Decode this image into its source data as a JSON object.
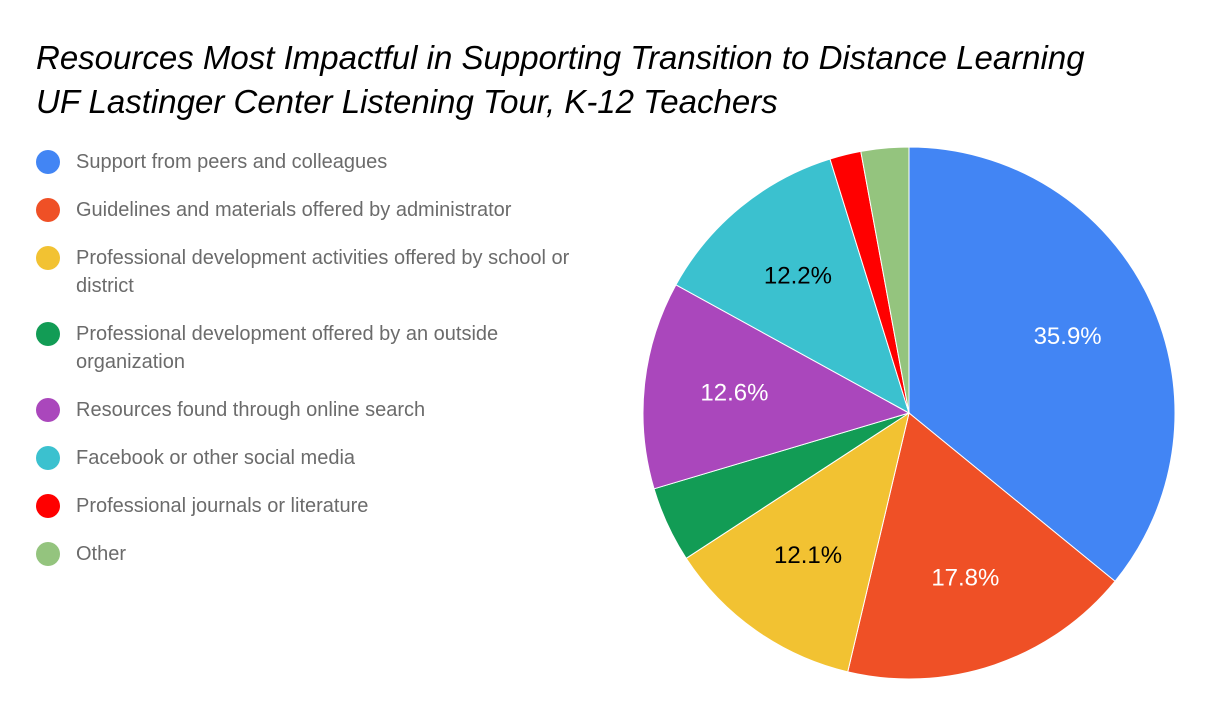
{
  "chart_data": {
    "type": "pie",
    "title_lines": [
      "Resources Most Impactful in Supporting Transition to Distance Learning",
      "UF Lastinger Center Listening Tour, K-12 Teachers"
    ],
    "legend_position": "left",
    "slices": [
      {
        "label": "Support from peers and colleagues",
        "value": 35.9,
        "color": "#4285F4",
        "data_label": "35.9%",
        "label_color": "#ffffff"
      },
      {
        "label": "Guidelines and materials offered by administrator",
        "value": 17.8,
        "color": "#EF5026",
        "data_label": "17.8%",
        "label_color": "#ffffff"
      },
      {
        "label": "Professional development activities offered by school or district",
        "value": 12.1,
        "color": "#F2C232",
        "data_label": "12.1%",
        "label_color": "#000000"
      },
      {
        "label": "Professional development offered by an outside organization",
        "value": 4.6,
        "color": "#129C55",
        "data_label": "",
        "label_color": "#ffffff"
      },
      {
        "label": "Resources found through online search",
        "value": 12.6,
        "color": "#AA47BC",
        "data_label": "12.6%",
        "label_color": "#ffffff"
      },
      {
        "label": "Facebook or other social media",
        "value": 12.2,
        "color": "#3BC1CF",
        "data_label": "12.2%",
        "label_color": "#000000"
      },
      {
        "label": "Professional journals or literature",
        "value": 1.9,
        "color": "#FF0000",
        "data_label": "",
        "label_color": "#ffffff"
      },
      {
        "label": "Other",
        "value": 2.9,
        "color": "#94C47E",
        "data_label": "",
        "label_color": "#000000"
      }
    ]
  }
}
